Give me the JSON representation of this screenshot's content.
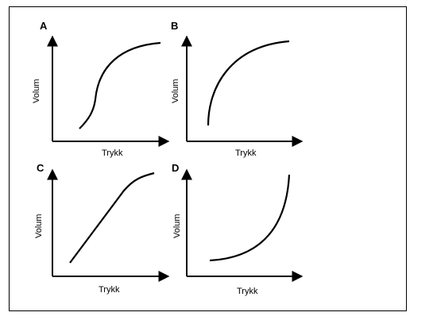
{
  "chart_data": [
    {
      "type": "line",
      "panel": "A",
      "xlabel": "Trykk",
      "ylabel": "Volum",
      "shape": "sigmoid",
      "series": [
        {
          "x": [
            0.0,
            0.1,
            0.2,
            0.25,
            0.3,
            0.4,
            0.5,
            0.6,
            0.75,
            0.9,
            1.0
          ],
          "values": [
            0.05,
            0.15,
            0.32,
            0.45,
            0.58,
            0.72,
            0.81,
            0.88,
            0.94,
            0.98,
            1.0
          ]
        }
      ]
    },
    {
      "type": "line",
      "panel": "B",
      "xlabel": "Trykk",
      "ylabel": "Volum",
      "shape": "saturating",
      "series": [
        {
          "x": [
            0.0,
            0.05,
            0.15,
            0.3,
            0.5,
            0.7,
            0.85,
            1.0
          ],
          "values": [
            0.0,
            0.28,
            0.55,
            0.75,
            0.88,
            0.95,
            0.98,
            1.0
          ]
        }
      ]
    },
    {
      "type": "line",
      "panel": "C",
      "xlabel": "Trykk",
      "ylabel": "Volum",
      "shape": "linear",
      "series": [
        {
          "x": [
            0.0,
            0.25,
            0.5,
            0.75,
            0.85,
            0.92,
            1.0
          ],
          "values": [
            0.0,
            0.27,
            0.55,
            0.82,
            0.91,
            0.96,
            1.0
          ]
        }
      ]
    },
    {
      "type": "line",
      "panel": "D",
      "xlabel": "Trykk",
      "ylabel": "Volum",
      "shape": "exponential",
      "series": [
        {
          "x": [
            0.0,
            0.2,
            0.4,
            0.6,
            0.75,
            0.88,
            0.95,
            1.0
          ],
          "values": [
            0.0,
            0.03,
            0.09,
            0.2,
            0.35,
            0.55,
            0.75,
            1.0
          ]
        }
      ]
    }
  ]
}
